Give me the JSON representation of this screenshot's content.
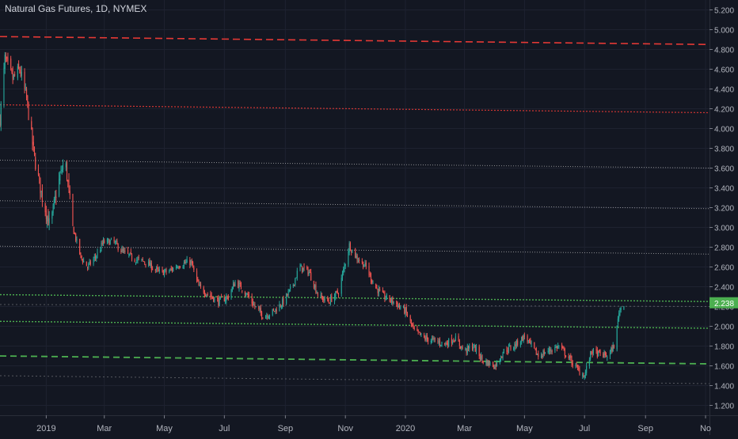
{
  "chart_data": {
    "type": "candlestick",
    "title": "Natural Gas Futures, 1D, NYMEX",
    "ylim": [
      1.1,
      5.3
    ],
    "y_ticks": [
      1.2,
      1.4,
      1.6,
      1.8,
      2.0,
      2.2,
      2.4,
      2.6,
      2.8,
      3.0,
      3.2,
      3.4,
      3.6,
      3.8,
      4.0,
      4.2,
      4.4,
      4.6,
      4.8,
      5.0,
      5.2
    ],
    "y_tick_labels": [
      "1.200",
      "1.400",
      "1.600",
      "1.800",
      "2.000",
      "2.200",
      "2.400",
      "2.600",
      "2.800",
      "3.000",
      "3.200",
      "3.400",
      "3.600",
      "3.800",
      "4.000",
      "4.200",
      "4.400",
      "4.600",
      "4.800",
      "5.000",
      "5.200"
    ],
    "x_range": [
      "2018-11-15",
      "2020-11-05"
    ],
    "x_ticks": [
      {
        "date": "2019-01-01",
        "label": "2019"
      },
      {
        "date": "2019-03-01",
        "label": "Mar"
      },
      {
        "date": "2019-05-01",
        "label": "May"
      },
      {
        "date": "2019-07-01",
        "label": "Jul"
      },
      {
        "date": "2019-09-01",
        "label": "Sep"
      },
      {
        "date": "2019-11-01",
        "label": "Nov"
      },
      {
        "date": "2020-01-01",
        "label": "2020"
      },
      {
        "date": "2020-03-01",
        "label": "Mar"
      },
      {
        "date": "2020-05-01",
        "label": "May"
      },
      {
        "date": "2020-07-01",
        "label": "Jul"
      },
      {
        "date": "2020-09-01",
        "label": "Sep"
      },
      {
        "date": "2020-11-01",
        "label": "No"
      }
    ],
    "last_price": 2.238,
    "last_price_label": "2.238",
    "colors": {
      "background": "#131722",
      "grid": "#1e2230",
      "up": "#26a69a",
      "down": "#ef5350",
      "text": "#b2b5be",
      "red_line": "#e53935",
      "green_line": "#4caf50",
      "white_line": "#b8b8b8",
      "price_label": "#4caf50"
    },
    "price_path": [
      [
        "2018-11-15",
        4.1
      ],
      [
        "2018-11-20",
        4.7
      ],
      [
        "2018-11-28",
        4.5
      ],
      [
        "2018-12-05",
        4.6
      ],
      [
        "2018-12-12",
        4.3
      ],
      [
        "2018-12-20",
        3.7
      ],
      [
        "2018-12-28",
        3.3
      ],
      [
        "2019-01-05",
        3.0
      ],
      [
        "2019-01-12",
        3.4
      ],
      [
        "2019-01-20",
        3.7
      ],
      [
        "2019-01-28",
        3.0
      ],
      [
        "2019-02-05",
        2.7
      ],
      [
        "2019-02-12",
        2.6
      ],
      [
        "2019-02-20",
        2.7
      ],
      [
        "2019-02-28",
        2.85
      ],
      [
        "2019-03-10",
        2.86
      ],
      [
        "2019-03-20",
        2.75
      ],
      [
        "2019-04-01",
        2.68
      ],
      [
        "2019-04-12",
        2.65
      ],
      [
        "2019-04-25",
        2.55
      ],
      [
        "2019-05-05",
        2.55
      ],
      [
        "2019-05-15",
        2.62
      ],
      [
        "2019-05-28",
        2.65
      ],
      [
        "2019-06-05",
        2.4
      ],
      [
        "2019-06-15",
        2.32
      ],
      [
        "2019-06-25",
        2.25
      ],
      [
        "2019-07-05",
        2.3
      ],
      [
        "2019-07-12",
        2.45
      ],
      [
        "2019-07-22",
        2.35
      ],
      [
        "2019-08-01",
        2.2
      ],
      [
        "2019-08-10",
        2.1
      ],
      [
        "2019-08-20",
        2.15
      ],
      [
        "2019-08-30",
        2.25
      ],
      [
        "2019-09-08",
        2.4
      ],
      [
        "2019-09-15",
        2.6
      ],
      [
        "2019-09-25",
        2.55
      ],
      [
        "2019-10-05",
        2.3
      ],
      [
        "2019-10-15",
        2.25
      ],
      [
        "2019-10-25",
        2.35
      ],
      [
        "2019-11-01",
        2.65
      ],
      [
        "2019-11-05",
        2.82
      ],
      [
        "2019-11-12",
        2.7
      ],
      [
        "2019-11-22",
        2.6
      ],
      [
        "2019-12-01",
        2.4
      ],
      [
        "2019-12-10",
        2.3
      ],
      [
        "2019-12-20",
        2.25
      ],
      [
        "2020-01-01",
        2.15
      ],
      [
        "2020-01-10",
        1.95
      ],
      [
        "2020-01-20",
        1.88
      ],
      [
        "2020-02-01",
        1.85
      ],
      [
        "2020-02-10",
        1.82
      ],
      [
        "2020-02-20",
        1.88
      ],
      [
        "2020-03-01",
        1.75
      ],
      [
        "2020-03-10",
        1.8
      ],
      [
        "2020-03-20",
        1.65
      ],
      [
        "2020-04-01",
        1.6
      ],
      [
        "2020-04-10",
        1.75
      ],
      [
        "2020-04-20",
        1.8
      ],
      [
        "2020-05-01",
        1.9
      ],
      [
        "2020-05-08",
        1.8
      ],
      [
        "2020-05-15",
        1.7
      ],
      [
        "2020-05-25",
        1.75
      ],
      [
        "2020-06-05",
        1.8
      ],
      [
        "2020-06-15",
        1.68
      ],
      [
        "2020-06-25",
        1.55
      ],
      [
        "2020-07-01",
        1.5
      ],
      [
        "2020-07-08",
        1.75
      ],
      [
        "2020-07-15",
        1.72
      ],
      [
        "2020-07-25",
        1.7
      ],
      [
        "2020-08-01",
        1.82
      ],
      [
        "2020-08-05",
        2.15
      ],
      [
        "2020-08-10",
        2.238
      ]
    ],
    "lines": [
      {
        "kind": "red-dashed",
        "from": [
          "2018-11-15",
          4.93
        ],
        "to": [
          "2020-11-05",
          4.85
        ]
      },
      {
        "kind": "red-dotted",
        "from": [
          "2018-11-15",
          4.24
        ],
        "to": [
          "2020-11-05",
          4.16
        ]
      },
      {
        "kind": "white-dotted",
        "from": [
          "2018-11-15",
          3.68
        ],
        "to": [
          "2020-11-05",
          3.6
        ]
      },
      {
        "kind": "white-dotted",
        "from": [
          "2018-11-15",
          3.27
        ],
        "to": [
          "2020-11-05",
          3.19
        ]
      },
      {
        "kind": "white-dotted",
        "from": [
          "2018-11-15",
          2.81
        ],
        "to": [
          "2020-11-05",
          2.73
        ]
      },
      {
        "kind": "green-dotted",
        "from": [
          "2018-11-15",
          2.32
        ],
        "to": [
          "2020-11-05",
          2.25
        ]
      },
      {
        "kind": "white-dotted-faint",
        "from": [
          "2018-11-15",
          2.22
        ],
        "to": [
          "2020-11-05",
          2.2
        ]
      },
      {
        "kind": "green-dotted",
        "from": [
          "2018-11-15",
          2.05
        ],
        "to": [
          "2020-11-05",
          1.98
        ]
      },
      {
        "kind": "green-dashed",
        "from": [
          "2018-11-15",
          1.7
        ],
        "to": [
          "2020-11-05",
          1.62
        ]
      },
      {
        "kind": "white-dotted-faint",
        "from": [
          "2018-11-15",
          1.5
        ],
        "to": [
          "2020-11-05",
          1.42
        ]
      }
    ]
  }
}
